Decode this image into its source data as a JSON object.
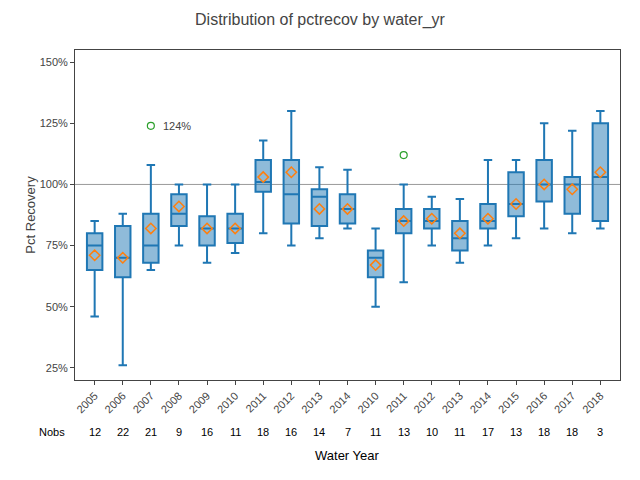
{
  "chart_data": {
    "type": "box",
    "title": "Distribution of pctrecov by water_yr",
    "xlabel": "Water Year",
    "ylabel": "Pct Recovery",
    "categories": [
      "2005",
      "2006",
      "2007",
      "2008",
      "2009",
      "2010",
      "2011",
      "2012",
      "2013",
      "2014",
      "2010",
      "2011",
      "2012",
      "2013",
      "2014",
      "2015",
      "2016",
      "2017",
      "2018"
    ],
    "boxes": [
      {
        "median": 75,
        "q1": 65,
        "q3": 80,
        "whislo": 46,
        "whishi": 85,
        "mean": 71,
        "fliers": []
      },
      {
        "median": 70,
        "q1": 62,
        "q3": 83,
        "whislo": 26,
        "whishi": 88,
        "mean": 70,
        "fliers": []
      },
      {
        "median": 75,
        "q1": 68,
        "q3": 88,
        "whislo": 65,
        "whishi": 108,
        "mean": 82,
        "fliers": [
          124
        ]
      },
      {
        "median": 88,
        "q1": 83,
        "q3": 96,
        "whislo": 75,
        "whishi": 100,
        "mean": 91,
        "fliers": []
      },
      {
        "median": 82,
        "q1": 75,
        "q3": 87,
        "whislo": 68,
        "whishi": 100,
        "mean": 82,
        "fliers": []
      },
      {
        "median": 82,
        "q1": 76,
        "q3": 88,
        "whislo": 72,
        "whishi": 100,
        "mean": 82,
        "fliers": []
      },
      {
        "median": 101,
        "q1": 97,
        "q3": 110,
        "whislo": 80,
        "whishi": 118,
        "mean": 103,
        "fliers": []
      },
      {
        "median": 96,
        "q1": 84,
        "q3": 110,
        "whislo": 75,
        "whishi": 130,
        "mean": 105,
        "fliers": []
      },
      {
        "median": 95,
        "q1": 83,
        "q3": 98,
        "whislo": 78,
        "whishi": 107,
        "mean": 90,
        "fliers": []
      },
      {
        "median": 90,
        "q1": 84,
        "q3": 96,
        "whislo": 82,
        "whishi": 106,
        "mean": 90,
        "fliers": []
      },
      {
        "median": 70,
        "q1": 62,
        "q3": 73,
        "whislo": 50,
        "whishi": 82,
        "mean": 67,
        "fliers": []
      },
      {
        "median": 85,
        "q1": 80,
        "q3": 90,
        "whislo": 60,
        "whishi": 100,
        "mean": 85,
        "fliers": [
          112
        ]
      },
      {
        "median": 85,
        "q1": 82,
        "q3": 90,
        "whislo": 75,
        "whishi": 95,
        "mean": 86,
        "fliers": []
      },
      {
        "median": 78,
        "q1": 73,
        "q3": 85,
        "whislo": 68,
        "whishi": 94,
        "mean": 80,
        "fliers": []
      },
      {
        "median": 85,
        "q1": 82,
        "q3": 92,
        "whislo": 75,
        "whishi": 110,
        "mean": 86,
        "fliers": []
      },
      {
        "median": 92,
        "q1": 87,
        "q3": 105,
        "whislo": 78,
        "whishi": 110,
        "mean": 92,
        "fliers": []
      },
      {
        "median": 100,
        "q1": 93,
        "q3": 110,
        "whislo": 82,
        "whishi": 125,
        "mean": 100,
        "fliers": []
      },
      {
        "median": 100,
        "q1": 88,
        "q3": 103,
        "whislo": 80,
        "whishi": 122,
        "mean": 98,
        "fliers": []
      },
      {
        "median": 103,
        "q1": 85,
        "q3": 125,
        "whislo": 82,
        "whishi": 130,
        "mean": 105,
        "fliers": []
      }
    ],
    "nobs_label": "Nobs",
    "nobs": [
      12,
      22,
      21,
      9,
      16,
      11,
      18,
      16,
      14,
      7,
      11,
      13,
      10,
      11,
      17,
      13,
      18,
      18,
      3
    ],
    "reference_line": 100,
    "annotations": [
      {
        "category": "2007",
        "value": 124,
        "text": "124%"
      }
    ],
    "ylim": [
      20,
      155
    ],
    "yticks": [
      {
        "value": 25,
        "label": "25%"
      },
      {
        "value": 50,
        "label": "50%"
      },
      {
        "value": 75,
        "label": "75%"
      },
      {
        "value": 100,
        "label": "100%"
      },
      {
        "value": 125,
        "label": "125%"
      },
      {
        "value": 150,
        "label": "150%"
      }
    ],
    "grid": false
  }
}
